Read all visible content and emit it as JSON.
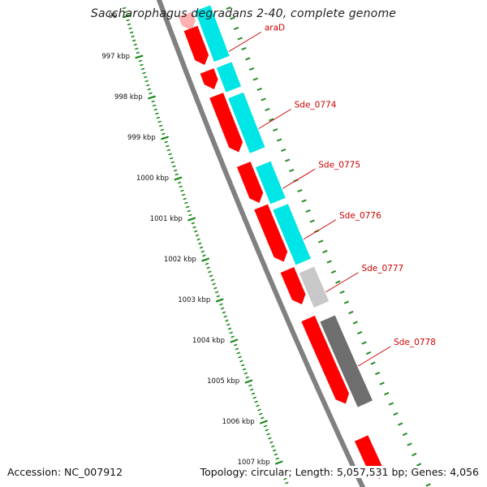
{
  "map": {
    "title": "Saccharophagus degradans 2-40, complete genome",
    "accession": "Accession: NC_007912",
    "topology": "Topology: circular; Length: 5,057,531 bp; Genes: 4,056"
  },
  "ruler": {
    "ticks": [
      "99",
      "997 kbp",
      "998 kbp",
      "999 kbp",
      "1000 kbp",
      "1001 kbp",
      "1002 kbp",
      "1003 kbp",
      "1004 kbp",
      "1005 kbp",
      "1006 kbp",
      "1007 kbp"
    ],
    "color": "#1a8a1a"
  },
  "colors": {
    "gene_forward": "#ff0000",
    "gene_forward_light": "#ffb0b0",
    "cds_cyan": "#00e5e5",
    "cds_light_gray": "#c8c8c8",
    "cds_dark_gray": "#6e6e6e",
    "backbone": "#808080",
    "label": "#cc0000",
    "rna_ticks": "#2a8a2a"
  },
  "genes": [
    {
      "label": "",
      "start": 995.95,
      "end": 996.35,
      "color": "forward_light",
      "track": "outer"
    },
    {
      "label": "araD",
      "start": 996.3,
      "end": 997.2,
      "color": "forward",
      "track": "outer"
    },
    {
      "label": "",
      "start": 997.35,
      "end": 997.8,
      "color": "forward",
      "track": "outer"
    },
    {
      "label": "Sde_0774",
      "start": 997.95,
      "end": 999.35,
      "color": "forward",
      "track": "outer"
    },
    {
      "label": "Sde_0775",
      "start": 999.65,
      "end": 1000.6,
      "color": "forward",
      "track": "outer"
    },
    {
      "label": "Sde_0776",
      "start": 1000.7,
      "end": 1002.05,
      "color": "forward",
      "track": "outer"
    },
    {
      "label": "Sde_0777",
      "start": 1002.25,
      "end": 1003.1,
      "color": "forward",
      "track": "outer"
    },
    {
      "label": "Sde_0778",
      "start": 1003.45,
      "end": 1005.55,
      "color": "forward",
      "track": "outer"
    },
    {
      "label": "",
      "start": 1006.4,
      "end": 1007.4,
      "color": "forward",
      "track": "outer"
    }
  ],
  "cds": [
    {
      "start": 995.8,
      "end": 997.05,
      "color": "cds_cyan"
    },
    {
      "start": 997.2,
      "end": 997.8,
      "color": "cds_cyan"
    },
    {
      "start": 997.95,
      "end": 999.3,
      "color": "cds_cyan"
    },
    {
      "start": 999.65,
      "end": 1000.55,
      "color": "cds_cyan"
    },
    {
      "start": 1000.7,
      "end": 1002.05,
      "color": "cds_cyan"
    },
    {
      "start": 1002.25,
      "end": 1003.1,
      "color": "cds_light_gray"
    },
    {
      "start": 1003.45,
      "end": 1005.55,
      "color": "cds_dark_gray"
    }
  ]
}
